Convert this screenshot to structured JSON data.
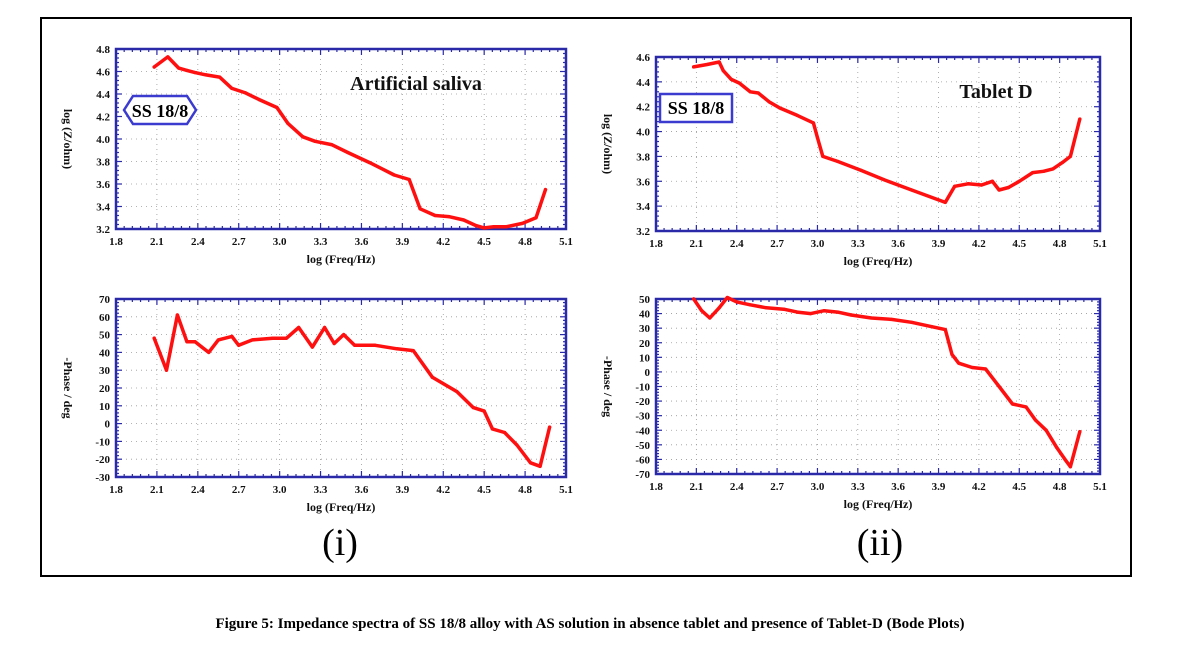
{
  "caption": "Figure 5: Impedance spectra of SS 18/8 alloy with AS solution in absence tablet and presence of Tablet-D (Bode Plots)",
  "colors": {
    "frame": "#2a2aa8",
    "series": "#ff1010",
    "grid": "#9a9a9a",
    "badge_border": "#3b3bd0"
  },
  "panels": [
    {
      "marker": "(i)",
      "badge": "SS 18/8",
      "badge_shape": "hexagon"
    },
    {
      "marker": "(ii)",
      "badge": "SS 18/8",
      "badge_shape": "rectangle"
    }
  ],
  "chart_data": [
    {
      "type": "line",
      "title": "Artificial saliva",
      "xlabel": "log (Freq/Hz)",
      "ylabel": "log (Z/ohm)",
      "xlim": [
        1.8,
        5.1
      ],
      "ylim": [
        3.2,
        4.8
      ],
      "xticks": [
        "1.8",
        "2.1",
        "2.4",
        "2.7",
        "3.0",
        "3.3",
        "3.6",
        "3.9",
        "4.2",
        "4.5",
        "4.8",
        "5.1"
      ],
      "yticks": [
        "3.2",
        "3.4",
        "3.6",
        "3.8",
        "4.0",
        "4.2",
        "4.4",
        "4.6",
        "4.8"
      ],
      "grid": true,
      "series": [
        {
          "x": [
            2.08,
            2.18,
            2.26,
            2.32,
            2.38,
            2.46,
            2.56,
            2.65,
            2.75,
            2.85,
            2.98,
            3.06,
            3.17,
            3.26,
            3.38,
            3.5,
            3.66,
            3.84,
            3.95,
            4.03,
            4.14,
            4.24,
            4.35,
            4.44,
            4.5,
            4.57,
            4.66,
            4.78,
            4.88,
            4.95
          ],
          "y": [
            4.64,
            4.73,
            4.63,
            4.61,
            4.59,
            4.57,
            4.55,
            4.45,
            4.41,
            4.35,
            4.28,
            4.14,
            4.02,
            3.98,
            3.95,
            3.88,
            3.79,
            3.68,
            3.64,
            3.38,
            3.32,
            3.31,
            3.28,
            3.23,
            3.21,
            3.22,
            3.22,
            3.25,
            3.3,
            3.55
          ]
        }
      ]
    },
    {
      "type": "line",
      "title": "",
      "xlabel": "log (Freq/Hz)",
      "ylabel": "-Phase / deg",
      "xlim": [
        1.8,
        5.1
      ],
      "ylim": [
        -30,
        70
      ],
      "xticks": [
        "1.8",
        "2.1",
        "2.4",
        "2.7",
        "3.0",
        "3.3",
        "3.6",
        "3.9",
        "4.2",
        "4.5",
        "4.8",
        "5.1"
      ],
      "yticks": [
        "-30",
        "-20",
        "-10",
        "0",
        "10",
        "20",
        "30",
        "40",
        "50",
        "60",
        "70"
      ],
      "grid": true,
      "series": [
        {
          "x": [
            2.08,
            2.17,
            2.25,
            2.32,
            2.38,
            2.43,
            2.48,
            2.55,
            2.65,
            2.7,
            2.8,
            2.95,
            3.05,
            3.14,
            3.24,
            3.33,
            3.4,
            3.47,
            3.55,
            3.7,
            3.86,
            3.98,
            4.12,
            4.3,
            4.42,
            4.5,
            4.56,
            4.65,
            4.74,
            4.84,
            4.91,
            4.98
          ],
          "y": [
            48,
            30,
            61,
            46,
            46,
            43,
            40,
            47,
            49,
            44,
            47,
            48,
            48,
            54,
            43,
            54,
            45,
            50,
            44,
            44,
            42,
            41,
            26,
            18,
            9,
            7,
            -3,
            -5,
            -12,
            -22,
            -24,
            -2
          ]
        }
      ]
    },
    {
      "type": "line",
      "title": "Tablet D",
      "xlabel": "log (Freq/Hz)",
      "ylabel": "log (Z/ohm)",
      "xlim": [
        1.8,
        5.1
      ],
      "ylim": [
        3.2,
        4.6
      ],
      "xticks": [
        "1.8",
        "2.1",
        "2.4",
        "2.7",
        "3.0",
        "3.3",
        "3.6",
        "3.9",
        "4.2",
        "4.5",
        "4.8",
        "5.1"
      ],
      "yticks": [
        "3.2",
        "3.4",
        "3.6",
        "3.8",
        "4.0",
        "4.2",
        "4.4",
        "4.6"
      ],
      "grid": true,
      "series": [
        {
          "x": [
            2.08,
            2.18,
            2.27,
            2.3,
            2.36,
            2.42,
            2.5,
            2.56,
            2.64,
            2.72,
            2.85,
            2.97,
            3.0,
            3.04,
            3.15,
            3.32,
            3.5,
            3.7,
            3.9,
            3.95,
            4.02,
            4.12,
            4.22,
            4.3,
            4.35,
            4.42,
            4.5,
            4.6,
            4.68,
            4.75,
            4.82,
            4.88,
            4.95
          ],
          "y": [
            4.52,
            4.54,
            4.56,
            4.49,
            4.42,
            4.39,
            4.32,
            4.31,
            4.24,
            4.19,
            4.13,
            4.07,
            3.95,
            3.8,
            3.76,
            3.69,
            3.61,
            3.53,
            3.45,
            3.43,
            3.56,
            3.58,
            3.57,
            3.6,
            3.53,
            3.55,
            3.6,
            3.67,
            3.68,
            3.7,
            3.75,
            3.8,
            4.1
          ]
        }
      ]
    },
    {
      "type": "line",
      "title": "",
      "xlabel": "log (Freq/Hz)",
      "ylabel": "-Phase / deg",
      "xlim": [
        1.8,
        5.1
      ],
      "ylim": [
        -70,
        50
      ],
      "xticks": [
        "1.8",
        "2.1",
        "2.4",
        "2.7",
        "3.0",
        "3.3",
        "3.6",
        "3.9",
        "4.2",
        "4.5",
        "4.8",
        "5.1"
      ],
      "yticks": [
        "-70",
        "-60",
        "-50",
        "-40",
        "-30",
        "-20",
        "-10",
        "0",
        "10",
        "20",
        "30",
        "40",
        "50"
      ],
      "grid": true,
      "series": [
        {
          "x": [
            2.08,
            2.14,
            2.2,
            2.27,
            2.33,
            2.4,
            2.5,
            2.62,
            2.75,
            2.85,
            2.95,
            3.05,
            3.15,
            3.25,
            3.4,
            3.55,
            3.7,
            3.85,
            3.95,
            4.0,
            4.05,
            4.15,
            4.25,
            4.35,
            4.45,
            4.55,
            4.62,
            4.7,
            4.78,
            4.84,
            4.88,
            4.95
          ],
          "y": [
            50,
            42,
            37,
            44,
            51,
            48,
            46,
            44,
            43,
            41,
            40,
            42,
            41,
            39,
            37,
            36,
            34,
            31,
            29,
            12,
            6,
            3,
            2,
            -10,
            -22,
            -24,
            -33,
            -40,
            -52,
            -60,
            -65,
            -41
          ]
        }
      ]
    }
  ]
}
